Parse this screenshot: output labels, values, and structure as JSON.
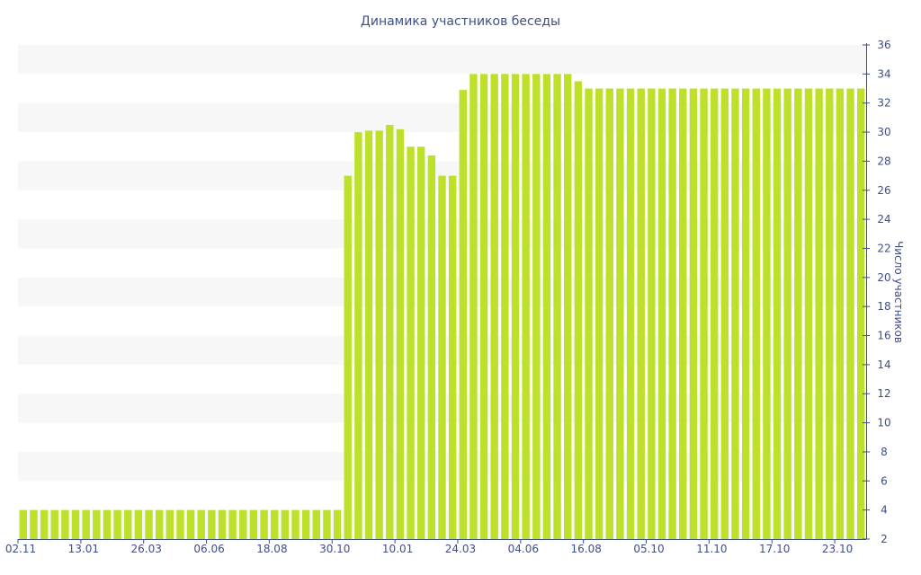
{
  "chart_data": {
    "type": "bar",
    "title": "Динамика участников беседы",
    "xlabel": "",
    "ylabel": "Число участников",
    "ylim": [
      2,
      36
    ],
    "y_ticks": [
      2,
      4,
      6,
      8,
      10,
      12,
      14,
      16,
      18,
      20,
      22,
      24,
      26,
      28,
      30,
      32,
      34,
      36
    ],
    "y_axis_position": "right",
    "grid": "alternating horizontal bands",
    "legend": "none",
    "bar_color": "#bde02b",
    "band_color": "#f7f7f7",
    "text_color": "#3e4f86",
    "axis_color": "#3e4f86",
    "x_tick_labels": [
      "02.11",
      "13.01",
      "26.03",
      "06.06",
      "18.08",
      "30.10",
      "10.01",
      "24.03",
      "04.06",
      "16.08",
      "05.10",
      "11.10",
      "17.10",
      "23.10"
    ],
    "x_tick_bar_index": [
      0,
      6,
      12,
      18,
      24,
      30,
      36,
      42,
      48,
      54,
      60,
      66,
      72,
      78
    ],
    "values": [
      4,
      4,
      4,
      4,
      4,
      4,
      4,
      4,
      4,
      4,
      4,
      4,
      4,
      4,
      4,
      4,
      4,
      4,
      4,
      4,
      4,
      4,
      4,
      4,
      4,
      4,
      4,
      4,
      4,
      4,
      4,
      27,
      30,
      30.1,
      30.1,
      30.5,
      30.2,
      29,
      29,
      28.4,
      27,
      27,
      32.9,
      34,
      34,
      34,
      34,
      34,
      34,
      34,
      34,
      34,
      34,
      33.5,
      33,
      33,
      33,
      33,
      33,
      33,
      33,
      33,
      33,
      33,
      33,
      33,
      33,
      33,
      33,
      33,
      33,
      33,
      33,
      33,
      33,
      33,
      33,
      33,
      33,
      33,
      33
    ]
  }
}
